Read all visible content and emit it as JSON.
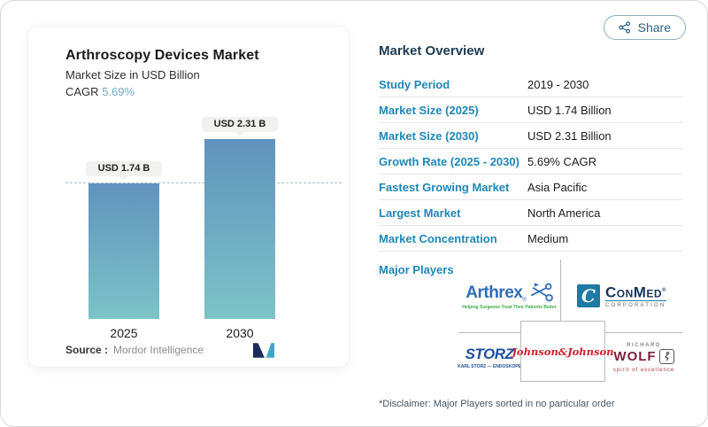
{
  "page": {
    "share_label": "Share"
  },
  "chart": {
    "title": "Arthroscopy Devices Market",
    "subtitle": "Market Size in USD Billion",
    "cagr_label": "CAGR",
    "cagr_value": "5.69%",
    "bar_labels": [
      "USD 1.74 B",
      "USD 2.31 B"
    ],
    "bar_years": [
      "2025",
      "2030"
    ],
    "source_label": "Source :",
    "source_value": "Mordor Intelligence"
  },
  "chart_data": {
    "type": "bar",
    "categories": [
      "2025",
      "2030"
    ],
    "values": [
      1.74,
      2.31
    ],
    "bar_value_labels": [
      "USD 1.74 B",
      "USD 2.31 B"
    ],
    "title": "Arthroscopy Devices Market",
    "ylabel": "Market Size in USD Billion",
    "cagr_percent": 5.69,
    "reference_line": 1.74,
    "ylim": [
      0,
      2.31
    ],
    "grid": "off",
    "legend": "none",
    "source": "Mordor Intelligence"
  },
  "overview": {
    "heading": "Market Overview",
    "rows": [
      {
        "label": "Study Period",
        "value": "2019 - 2030"
      },
      {
        "label": "Market Size (2025)",
        "value": "USD 1.74 Billion"
      },
      {
        "label": "Market Size (2030)",
        "value": "USD 2.31 Billion"
      },
      {
        "label": "Growth Rate (2025 - 2030)",
        "value": "5.69% CAGR"
      },
      {
        "label": "Fastest Growing Market",
        "value": "Asia Pacific"
      },
      {
        "label": "Largest Market",
        "value": "North America"
      },
      {
        "label": "Market Concentration",
        "value": "Medium"
      }
    ],
    "major_players_label": "Major Players",
    "players": [
      "Arthrex",
      "ConMed Corporation",
      "Karl Storz",
      "Johnson & Johnson",
      "Richard Wolf"
    ],
    "disclaimer": "*Disclaimer: Major Players sorted in no particular order"
  },
  "logos": {
    "arthrex": {
      "name": "Arthrex",
      "reg": "®",
      "tagline": "Helping Surgeons Treat Their Patients Better"
    },
    "conmed": {
      "c": "C",
      "name": "ConMed",
      "reg": "®",
      "sub": "CORPORATION"
    },
    "storz": {
      "name": "STORZ",
      "sub": "KARL STORZ — ENDOSKOPE"
    },
    "jnj": {
      "name": "Johnson&Johnson"
    },
    "wolf": {
      "top": "RICHARD",
      "name": "WOLF",
      "sub": "spirit of excellence"
    }
  },
  "colors": {
    "accent_blue": "#1e87b7",
    "heading_navy": "#1b3a52",
    "bar_gradient_top": "#6093be",
    "bar_gradient_bottom": "#7dc3c7",
    "cagr_blue": "#74a9cf",
    "share_teal": "#2d607f",
    "arthrex_blue": "#2f6db8",
    "arthrex_green": "#3faa4c",
    "conmed_blue": "#1c7aa4",
    "storz_blue": "#1d4f9e",
    "jnj_red": "#cf2030",
    "wolf_maroon": "#7d1f3c",
    "mordor_navy": "#1e2a5a",
    "mordor_teal": "#3ba9c4"
  }
}
